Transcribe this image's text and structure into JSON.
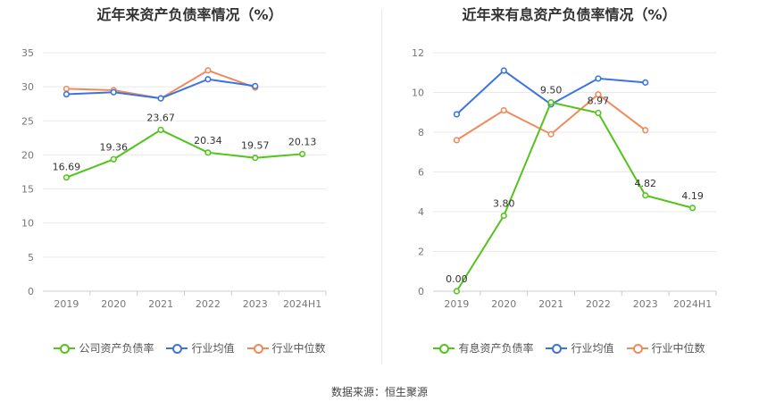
{
  "chart_data": [
    {
      "type": "line",
      "title": "近年来资产负债率情况（%）",
      "categories": [
        "2019",
        "2020",
        "2021",
        "2022",
        "2023",
        "2024H1"
      ],
      "y_ticks": [
        "0",
        "5",
        "10",
        "15",
        "20",
        "25",
        "30",
        "35"
      ],
      "ylim": [
        0,
        35
      ],
      "grid": true,
      "legend_position": "bottom",
      "series": [
        {
          "name": "公司资产负债率",
          "color": "#52c41a",
          "values": [
            16.69,
            19.36,
            23.67,
            20.34,
            19.57,
            20.13
          ],
          "labels": [
            "16.69",
            "19.36",
            "23.67",
            "20.34",
            "19.57",
            "20.13"
          ]
        },
        {
          "name": "行业均值",
          "color": "#3b73e0",
          "values": [
            28.9,
            29.2,
            28.3,
            31.1,
            30.1,
            null
          ]
        },
        {
          "name": "行业中位数",
          "color": "#f08a5d",
          "values": [
            29.7,
            29.5,
            28.3,
            32.4,
            29.9,
            null
          ]
        }
      ]
    },
    {
      "type": "line",
      "title": "近年来有息资产负债率情况（%）",
      "categories": [
        "2019",
        "2020",
        "2021",
        "2022",
        "2023",
        "2024H1"
      ],
      "y_ticks": [
        "0",
        "2",
        "4",
        "6",
        "8",
        "10",
        "12"
      ],
      "ylim": [
        0,
        12
      ],
      "grid": true,
      "legend_position": "bottom",
      "series": [
        {
          "name": "有息资产负债率",
          "color": "#52c41a",
          "values": [
            0.0,
            3.8,
            9.5,
            8.97,
            4.82,
            4.19
          ],
          "labels": [
            "0.00",
            "3.80",
            "9.50",
            "8.97",
            "4.82",
            "4.19"
          ]
        },
        {
          "name": "行业均值",
          "color": "#3b73e0",
          "values": [
            8.9,
            11.1,
            9.4,
            10.7,
            10.5,
            null
          ]
        },
        {
          "name": "行业中位数",
          "color": "#f08a5d",
          "values": [
            7.6,
            9.1,
            7.9,
            9.9,
            8.1,
            null
          ]
        }
      ]
    }
  ],
  "footer": {
    "source": "数据来源：恒生聚源"
  }
}
